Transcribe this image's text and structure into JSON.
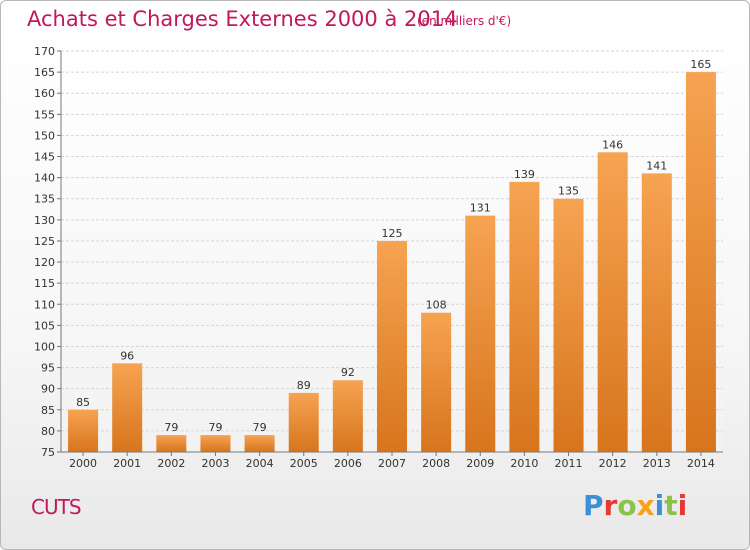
{
  "header": {
    "title": "Achats et Charges Externes 2000 à 2014",
    "unit": "(en milliers d'€)"
  },
  "footer": {
    "place": "CUTS",
    "logo": "Proxiti"
  },
  "colors": {
    "title": "#c2185b",
    "bar_top": "#f6a352",
    "bar_bottom": "#d7751c",
    "logo_letters": [
      "#3d8fd6",
      "#e53935",
      "#8bc34a",
      "#f7a21b",
      "#3d8fd6",
      "#8bc34a",
      "#e53935"
    ]
  },
  "chart_data": {
    "type": "bar",
    "title": "Achats et Charges Externes 2000 à 2014",
    "xlabel": "",
    "ylabel": "",
    "categories": [
      "2000",
      "2001",
      "2002",
      "2003",
      "2004",
      "2005",
      "2006",
      "2007",
      "2008",
      "2009",
      "2010",
      "2011",
      "2012",
      "2013",
      "2014"
    ],
    "values": [
      85,
      96,
      79,
      79,
      79,
      89,
      92,
      125,
      108,
      131,
      139,
      135,
      146,
      141,
      165
    ],
    "ylim": [
      75,
      170
    ],
    "yticks": [
      75,
      80,
      85,
      90,
      95,
      100,
      105,
      110,
      115,
      120,
      125,
      130,
      135,
      140,
      145,
      150,
      155,
      160,
      165,
      170
    ],
    "grid": true,
    "legend": "none"
  }
}
